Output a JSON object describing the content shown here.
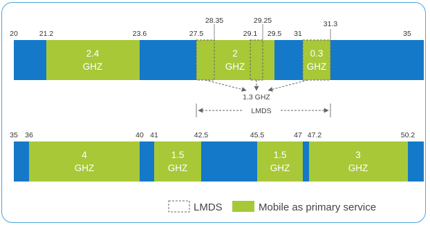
{
  "colors": {
    "blue": "#1479c8",
    "green": "#a8c838",
    "frame": "#4aa3d8",
    "dash": "#666666"
  },
  "top_ticks": [
    "20",
    "21.2",
    "23.6",
    "27.5",
    "28.35",
    "29.1",
    "29.25",
    "29.5",
    "31",
    "31.3",
    "35"
  ],
  "bottom_ticks": [
    "35",
    "36",
    "40",
    "41",
    "42.5",
    "45.5",
    "47",
    "47.2",
    "50.2"
  ],
  "top_bands": [
    {
      "line1": "2.4",
      "line2": "GHZ"
    },
    {
      "line1": "2",
      "line2": "GHZ"
    },
    {
      "line1": "0.3",
      "line2": "GHZ"
    }
  ],
  "bottom_bands": [
    {
      "line1": "4",
      "line2": "GHZ"
    },
    {
      "line1": "1.5",
      "line2": "GHZ"
    },
    {
      "line1": "1.5",
      "line2": "GHZ"
    },
    {
      "line1": "3",
      "line2": "GHZ"
    }
  ],
  "annotation": {
    "total": "1.3 GHZ",
    "lmds": "LMDS"
  },
  "legend": {
    "lmds": "LMDS",
    "mobile": "Mobile as primary service"
  }
}
